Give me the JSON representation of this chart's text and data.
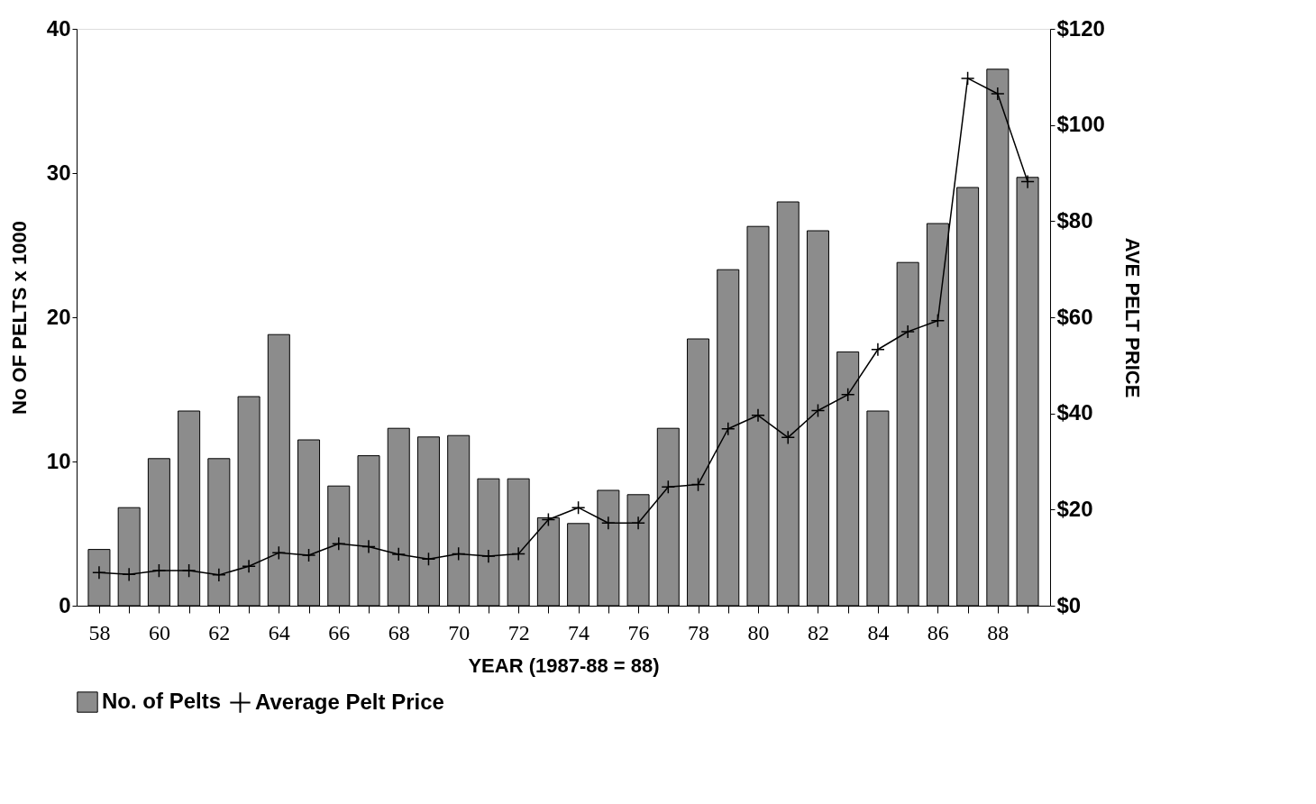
{
  "chart_data": {
    "type": "bar",
    "xlabel": "YEAR (1987-88 = 88)",
    "ylabel": "No OF PELTS x 1000",
    "y2label": "AVE PELT PRICE",
    "x": [
      58,
      59,
      60,
      61,
      62,
      63,
      64,
      65,
      66,
      67,
      68,
      69,
      70,
      71,
      72,
      73,
      74,
      75,
      76,
      77,
      78,
      79,
      80,
      81,
      82,
      83,
      84,
      85,
      86,
      87,
      88,
      89
    ],
    "xlim": [
      57.4,
      89.6
    ],
    "xticks": [
      58,
      {
        "value": 59,
        "label": null
      },
      60,
      {
        "value": 61,
        "label": null
      },
      62,
      {
        "value": 63,
        "label": null
      },
      64,
      {
        "value": 65,
        "label": null
      },
      66,
      {
        "value": 67,
        "label": null
      },
      68,
      {
        "value": 69,
        "label": null
      },
      70,
      {
        "value": 71,
        "label": null
      },
      72,
      {
        "value": 73,
        "label": null
      },
      74,
      {
        "value": 75,
        "label": null
      },
      76,
      {
        "value": 77,
        "label": null
      },
      78,
      {
        "value": 79,
        "label": null
      },
      80,
      {
        "value": 81,
        "label": null
      },
      82,
      {
        "value": 83,
        "label": null
      },
      84,
      {
        "value": 85,
        "label": null
      },
      86,
      {
        "value": 87,
        "label": null
      },
      88,
      {
        "value": 89,
        "label": null
      }
    ],
    "ylim": [
      0,
      40
    ],
    "yticks": [
      0,
      10,
      20,
      30,
      40
    ],
    "y2lim": [
      0,
      120
    ],
    "y2ticks": [
      {
        "value": 0,
        "label": "$0"
      },
      {
        "value": 20,
        "label": "$20"
      },
      {
        "value": 40,
        "label": "$40"
      },
      {
        "value": 60,
        "label": "$60"
      },
      {
        "value": 80,
        "label": "$80"
      },
      {
        "value": 100,
        "label": "$100"
      },
      {
        "value": 120,
        "label": "$120"
      }
    ],
    "series": [
      {
        "name": "No. of Pelts",
        "color": "#8c8c8c",
        "values": [
          3.9,
          6.8,
          10.2,
          13.5,
          10.2,
          14.5,
          18.8,
          11.5,
          8.3,
          10.4,
          12.3,
          11.7,
          11.8,
          8.8,
          8.8,
          6.1,
          5.7,
          8.0,
          7.7,
          12.3,
          18.5,
          23.3,
          26.3,
          28.0,
          26.0,
          17.6,
          13.5,
          23.8,
          26.5,
          29.0,
          37.2,
          29.7
        ]
      },
      {
        "name": "Average Pelt Price",
        "type": "line",
        "axis": "y2",
        "color": "#000000",
        "marker": "cross",
        "line_style": "solid",
        "values": [
          6.9,
          6.5,
          7.3,
          7.3,
          6.4,
          8.2,
          11.0,
          10.5,
          12.9,
          12.3,
          10.7,
          9.7,
          10.8,
          10.3,
          10.8,
          17.9,
          20.4,
          17.2,
          17.2,
          24.7,
          25.2,
          36.8,
          39.6,
          35.0,
          40.6,
          43.9,
          53.3,
          57.0,
          59.3,
          109.7,
          106.5,
          88.2
        ]
      }
    ],
    "grid": false,
    "legend": "bottom"
  }
}
